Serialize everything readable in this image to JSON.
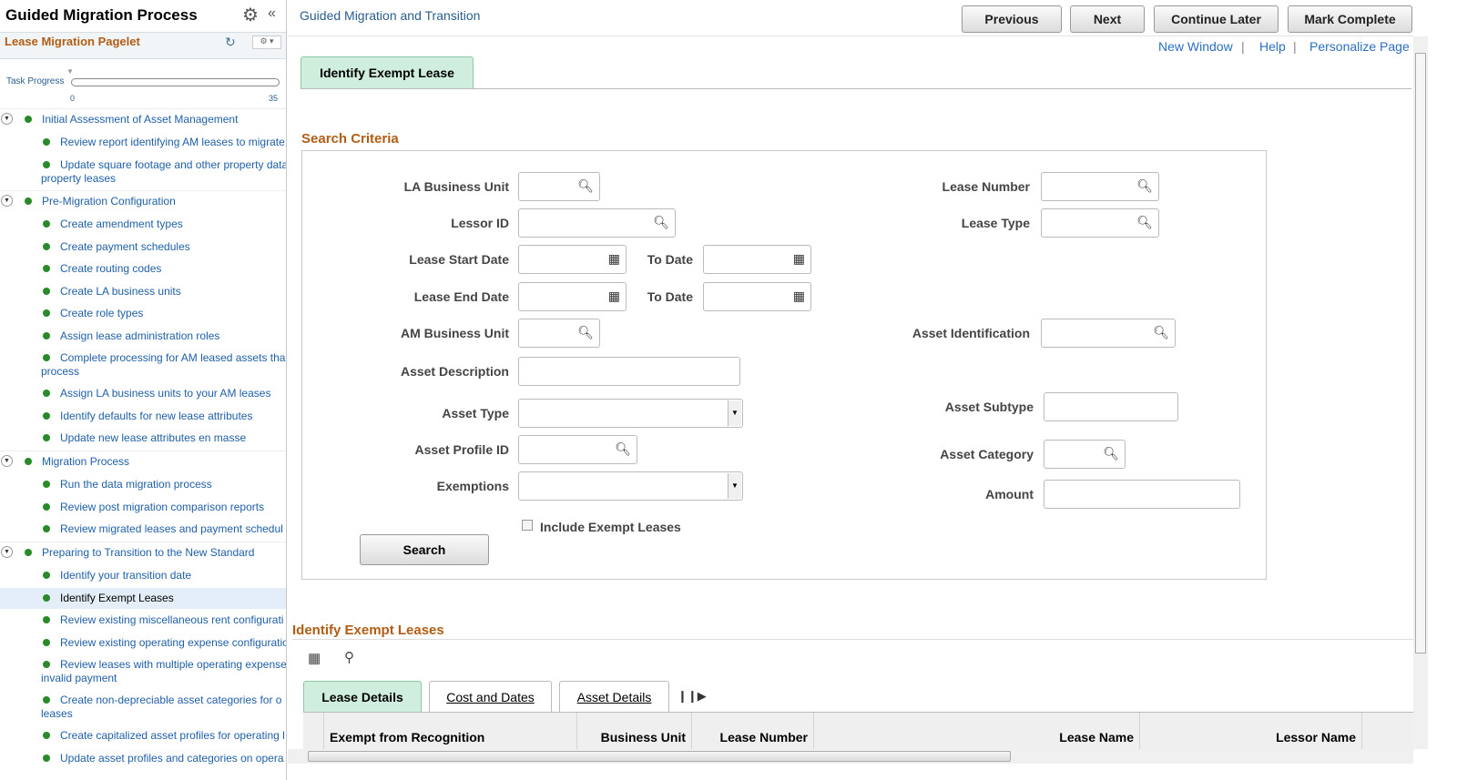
{
  "sidebar": {
    "title": "Guided Migration Process",
    "pagelet_title": "Lease Migration Pagelet",
    "progress_label": "Task Progress",
    "progress_min": "0",
    "progress_max": "35",
    "progress_value": 0,
    "items": [
      {
        "type": "grp",
        "label": "Initial Assessment of Asset Management"
      },
      {
        "type": "sub",
        "label": "Review report identifying AM leases to migrate"
      },
      {
        "type": "sub",
        "label": "Update square footage and other property data",
        "label2": "property leases"
      },
      {
        "type": "grp",
        "label": "Pre-Migration Configuration"
      },
      {
        "type": "sub",
        "label": "Create amendment types"
      },
      {
        "type": "sub",
        "label": "Create payment schedules"
      },
      {
        "type": "sub",
        "label": "Create routing codes"
      },
      {
        "type": "sub",
        "label": "Create LA business units"
      },
      {
        "type": "sub",
        "label": "Create role types"
      },
      {
        "type": "sub",
        "label": "Assign lease administration roles"
      },
      {
        "type": "sub",
        "label": "Complete processing for AM leased assets tha",
        "label2": "process"
      },
      {
        "type": "sub",
        "label": "Assign LA business units to your AM leases"
      },
      {
        "type": "sub",
        "label": "Identify defaults for new lease attributes"
      },
      {
        "type": "sub",
        "label": "Update new lease attributes en masse"
      },
      {
        "type": "grp",
        "label": "Migration Process"
      },
      {
        "type": "sub",
        "label": "Run the data migration process"
      },
      {
        "type": "sub",
        "label": "Review post migration comparison reports"
      },
      {
        "type": "sub",
        "label": "Review migrated leases and payment schedul"
      },
      {
        "type": "grp",
        "label": "Preparing to Transition to the New Standard"
      },
      {
        "type": "sub",
        "label": "Identify your transition date"
      },
      {
        "type": "sub",
        "label": "Identify Exempt Leases",
        "selected": true
      },
      {
        "type": "sub",
        "label": "Review existing miscellaneous rent configurati"
      },
      {
        "type": "sub",
        "label": "Review existing operating expense configuratio"
      },
      {
        "type": "sub",
        "label": "Review leases with multiple operating expense",
        "label2": "invalid payment"
      },
      {
        "type": "sub",
        "label": "Create non-depreciable asset categories for o",
        "label2": "leases"
      },
      {
        "type": "sub",
        "label": "Create capitalized asset profiles for operating l"
      },
      {
        "type": "sub",
        "label": "Update asset profiles and categories on opera"
      }
    ]
  },
  "header": {
    "breadcrumb": "Guided Migration and Transition",
    "buttons": [
      "Previous",
      "Next",
      "Continue Later",
      "Mark Complete"
    ],
    "links": [
      "New Window",
      "Help",
      "Personalize Page"
    ]
  },
  "page_tab": "Identify Exempt Lease",
  "search": {
    "title": "Search Criteria",
    "fields": {
      "la_bu": "LA Business Unit",
      "lessor": "Lessor ID",
      "start": "Lease Start Date",
      "to1": "To Date",
      "end": "Lease End Date",
      "to2": "To Date",
      "am_bu": "AM Business Unit",
      "desc": "Asset Description",
      "type": "Asset Type",
      "profile": "Asset Profile ID",
      "exemptions": "Exemptions",
      "lease_no": "Lease Number",
      "lease_type": "Lease Type",
      "asset_id": "Asset Identification",
      "subtype": "Asset Subtype",
      "category": "Asset Category",
      "amount": "Amount"
    },
    "include_exempt": "Include Exempt Leases",
    "include_exempt_checked": false,
    "search_button": "Search"
  },
  "grid": {
    "title": "Identify Exempt Leases",
    "tabs": [
      "Lease Details",
      "Cost and Dates",
      "Asset Details"
    ],
    "active_tab": "Lease Details",
    "columns": [
      "Exempt from Recognition",
      "Business Unit",
      "Lease Number",
      "Lease Name",
      "Lessor Name"
    ]
  }
}
